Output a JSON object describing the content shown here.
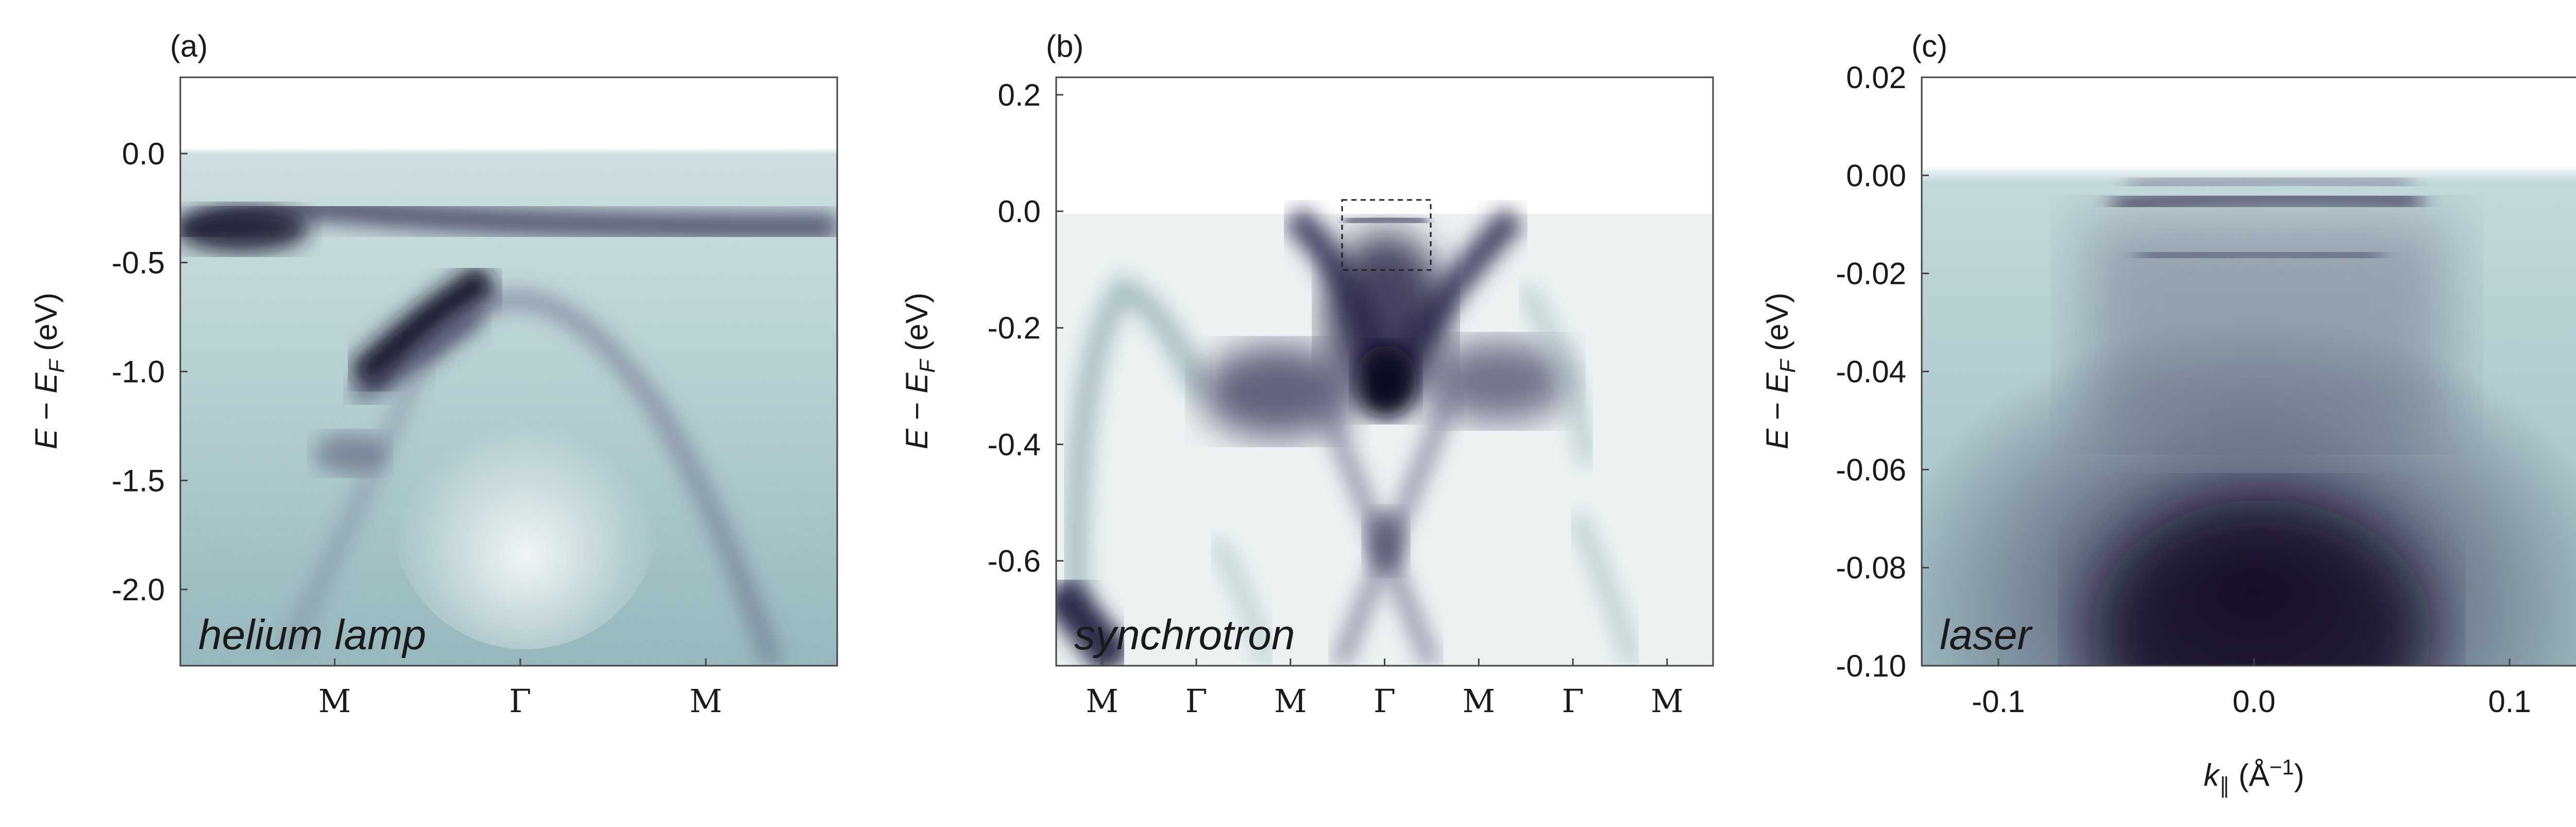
{
  "chart_data": [
    {
      "type": "heatmap",
      "panel": "(a)",
      "source_label": "helium lamp",
      "ylabel": "E − E_F (eV)",
      "xlabel": "",
      "ylim": [
        -2.35,
        0.35
      ],
      "y_ticks": [
        {
          "value": 0.0,
          "label": "0.0"
        },
        {
          "value": -0.5,
          "label": "-0.5"
        },
        {
          "value": -1.0,
          "label": "-1.0"
        },
        {
          "value": -1.5,
          "label": "-1.5"
        },
        {
          "value": -2.0,
          "label": "-2.0"
        }
      ],
      "x_ticks": [
        "M",
        "Γ",
        "M"
      ],
      "fermi_level_eV": 0.0,
      "colormap": "white-to-teal-to-dark-purple",
      "features": [
        {
          "name": "flat band near M",
          "energy_eV": -0.4
        },
        {
          "name": "dispersive band",
          "energy_eV_range": [
            -1.1,
            -0.6
          ]
        },
        {
          "name": "inverted parabola apex at Γ",
          "energy_eV": -0.55
        }
      ]
    },
    {
      "type": "heatmap",
      "panel": "(b)",
      "source_label": "synchrotron",
      "ylabel": "E − E_F (eV)",
      "xlabel": "",
      "ylim": [
        -0.78,
        0.23
      ],
      "y_ticks": [
        {
          "value": 0.2,
          "label": "0.2"
        },
        {
          "value": 0.0,
          "label": "0.0"
        },
        {
          "value": -0.2,
          "label": "-0.2"
        },
        {
          "value": -0.4,
          "label": "-0.4"
        },
        {
          "value": -0.6,
          "label": "-0.6"
        }
      ],
      "x_ticks": [
        "M",
        "Γ",
        "M",
        "Γ",
        "M",
        "Γ",
        "M"
      ],
      "dashed_box_energy_eV": [
        -0.1,
        0.02
      ],
      "colormap": "white-to-teal-to-dark-purple"
    },
    {
      "type": "heatmap",
      "panel": "(c)",
      "source_label": "laser",
      "ylabel": "E − E_F (eV)",
      "xlabel": "k_∥ (Å⁻¹)",
      "ylim": [
        -0.1,
        0.02
      ],
      "xlim": [
        -0.13,
        0.13
      ],
      "y_ticks": [
        {
          "value": 0.02,
          "label": "0.02"
        },
        {
          "value": 0.0,
          "label": "0.00"
        },
        {
          "value": -0.02,
          "label": "-0.02"
        },
        {
          "value": -0.04,
          "label": "-0.04"
        },
        {
          "value": -0.06,
          "label": "-0.06"
        },
        {
          "value": -0.08,
          "label": "-0.08"
        },
        {
          "value": -0.1,
          "label": "-0.10"
        }
      ],
      "x_ticks": [
        {
          "value": -0.1,
          "label": "-0.1"
        },
        {
          "value": 0.0,
          "label": "0.0"
        },
        {
          "value": 0.1,
          "label": "0.1"
        }
      ],
      "bands_eV": [
        -0.003,
        -0.008,
        -0.018
      ],
      "colormap": "white-to-teal-to-dark-purple"
    }
  ]
}
